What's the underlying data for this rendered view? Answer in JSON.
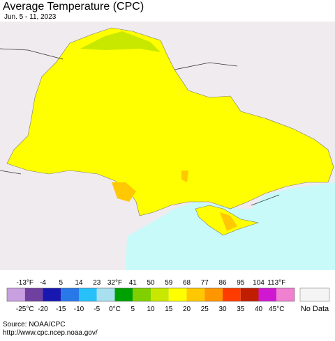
{
  "header": {
    "title": "Average Temperature (CPC)",
    "subtitle": "Jun. 5 - 11, 2023"
  },
  "legend": {
    "colors": [
      "#c8a0e0",
      "#7040a0",
      "#1818b0",
      "#2878e8",
      "#28c0f8",
      "#a8e0f0",
      "#00a000",
      "#80d000",
      "#c8e800",
      "#ffff00",
      "#ffc800",
      "#ff9600",
      "#ff3c00",
      "#c01e00",
      "#d018d0",
      "#f080d0"
    ],
    "fahrenheit_labels": [
      "-13°F",
      "-4",
      "5",
      "14",
      "23",
      "32°F",
      "41",
      "50",
      "59",
      "68",
      "77",
      "86",
      "95",
      "104",
      "113°F"
    ],
    "celsius_labels": [
      "-25°C",
      "-20",
      "-15",
      "-10",
      "-5",
      "0°C",
      "5",
      "10",
      "15",
      "20",
      "25",
      "30",
      "35",
      "40",
      "45°C"
    ],
    "no_data_label": "No Data"
  },
  "footer": {
    "source": "Source: NOAA/CPC",
    "url": "http://www.cpc.ncep.noaa.gov/"
  }
}
